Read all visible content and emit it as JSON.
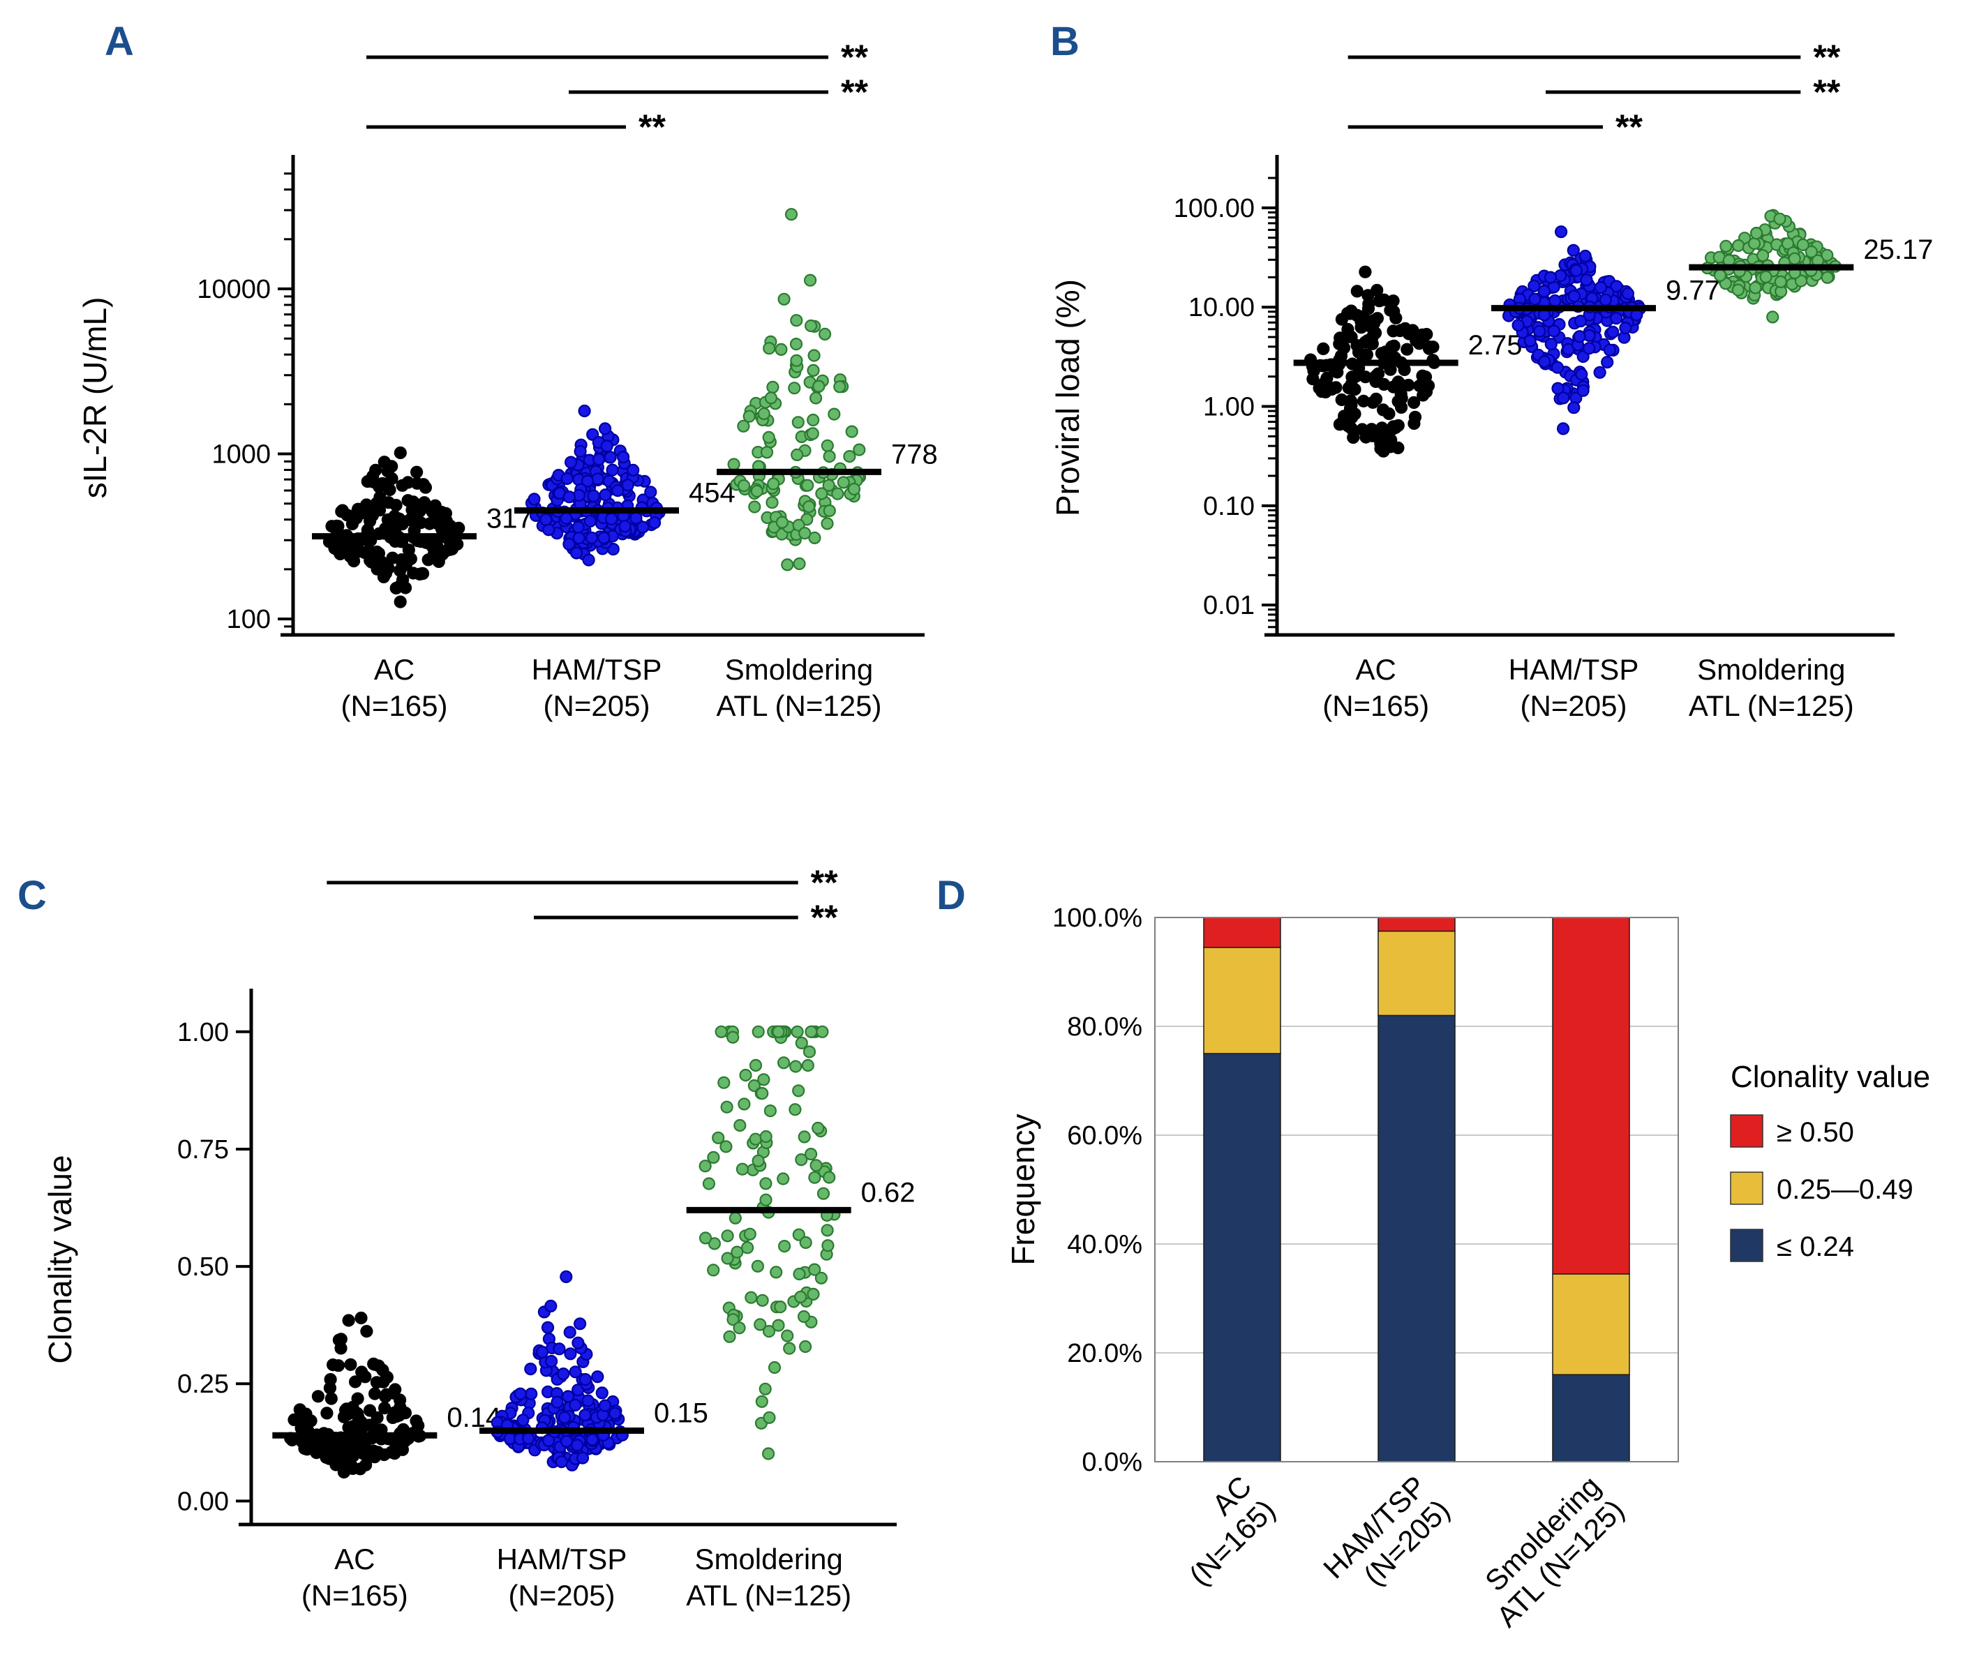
{
  "figure": {
    "background": "#ffffff",
    "panel_label_color": "#1b4e8c"
  },
  "chart_data": [
    {
      "panel": "A",
      "type": "scatter",
      "subtype": "beeswarm",
      "yscale": "log",
      "ylabel": "sIL-2R (U/mL)",
      "ylim": [
        80,
        60000
      ],
      "yticks": [
        {
          "v": 100,
          "label": "100"
        },
        {
          "v": 1000,
          "label": "1000"
        },
        {
          "v": 10000,
          "label": "10000"
        }
      ],
      "groups": [
        {
          "label_line1": "AC",
          "label_line2": "(N=165)",
          "n": 165,
          "median": 317,
          "median_label": "317",
          "fill": "#000000",
          "stroke": "#000000",
          "sd_down": 0.15,
          "sd_up": 0.21,
          "min": 110,
          "max": 2400,
          "dist": "lognormal"
        },
        {
          "label_line1": "HAM/TSP",
          "label_line2": "(N=205)",
          "n": 205,
          "median": 454,
          "median_label": "454",
          "fill": "#1717e6",
          "stroke": "#0000a0",
          "sd_down": 0.13,
          "sd_up": 0.2,
          "min": 150,
          "max": 3100,
          "dist": "lognormal"
        },
        {
          "label_line1": "Smoldering",
          "label_line2": "ATL (N=125)",
          "n": 125,
          "median": 778,
          "median_label": "778",
          "fill": "#66b96a",
          "stroke": "#2c7a31",
          "sd_down": 0.22,
          "sd_up": 0.5,
          "min": 185,
          "max": 40000,
          "dist": "lognormal"
        }
      ],
      "significance": [
        {
          "from": 0,
          "to": 2,
          "label": "**"
        },
        {
          "from": 1,
          "to": 2,
          "label": "**"
        },
        {
          "from": 0,
          "to": 1,
          "label": "**"
        }
      ]
    },
    {
      "panel": "B",
      "type": "scatter",
      "subtype": "beeswarm",
      "yscale": "log",
      "ylabel": "Proviral load (%)",
      "ylim": [
        0.005,
        300
      ],
      "yticks": [
        {
          "v": 100,
          "label": "100.00"
        },
        {
          "v": 10,
          "label": "10.00"
        },
        {
          "v": 1,
          "label": "1.00"
        },
        {
          "v": 0.1,
          "label": "0.10"
        },
        {
          "v": 0.01,
          "label": "0.01"
        }
      ],
      "groups": [
        {
          "label_line1": "AC",
          "label_line2": "(N=165)",
          "n": 165,
          "median": 2.75,
          "median_label": "2.75",
          "fill": "#000000",
          "stroke": "#000000",
          "sd_down": 0.5,
          "sd_up": 0.35,
          "min": 0.08,
          "max": 55,
          "dist": "lognormal"
        },
        {
          "label_line1": "HAM/TSP",
          "label_line2": "(N=205)",
          "n": 205,
          "median": 9.77,
          "median_label": "9.77",
          "fill": "#1717e6",
          "stroke": "#0000a0",
          "sd_down": 0.4,
          "sd_up": 0.22,
          "min": 0.17,
          "max": 75,
          "dist": "lognormal"
        },
        {
          "label_line1": "Smoldering",
          "label_line2": "ATL (N=125)",
          "n": 125,
          "median": 25.17,
          "median_label": "25.17",
          "fill": "#66b96a",
          "stroke": "#2c7a31",
          "sd_down": 0.18,
          "sd_up": 0.22,
          "min": 5.5,
          "max": 170,
          "dist": "lognormal"
        }
      ],
      "significance": [
        {
          "from": 0,
          "to": 2,
          "label": "**"
        },
        {
          "from": 1,
          "to": 2,
          "label": "**"
        },
        {
          "from": 0,
          "to": 1,
          "label": "**"
        }
      ]
    },
    {
      "panel": "C",
      "type": "scatter",
      "subtype": "beeswarm",
      "yscale": "linear",
      "ylabel": "Clonality value",
      "ylim": [
        -0.05,
        1.08
      ],
      "yticks": [
        {
          "v": 0,
          "label": "0.00"
        },
        {
          "v": 0.25,
          "label": "0.25"
        },
        {
          "v": 0.5,
          "label": "0.50"
        },
        {
          "v": 0.75,
          "label": "0.75"
        },
        {
          "v": 1,
          "label": "1.00"
        }
      ],
      "groups": [
        {
          "label_line1": "AC",
          "label_line2": "(N=165)",
          "n": 165,
          "median": 0.14,
          "median_label": "0.14",
          "fill": "#000000",
          "stroke": "#000000",
          "sd_down": 0.28,
          "sd_up": 0.5,
          "min": 0.06,
          "max": 0.87,
          "dist": "lognormal"
        },
        {
          "label_line1": "HAM/TSP",
          "label_line2": "(N=205)",
          "n": 205,
          "median": 0.15,
          "median_label": "0.15",
          "fill": "#1717e6",
          "stroke": "#0000a0",
          "sd_down": 0.25,
          "sd_up": 0.45,
          "min": 0.07,
          "max": 0.82,
          "dist": "lognormal"
        },
        {
          "label_line1": "Smoldering",
          "label_line2": "ATL (N=125)",
          "n": 125,
          "median": 0.62,
          "median_label": "0.62",
          "fill": "#66b96a",
          "stroke": "#2c7a31",
          "sd_down": 0.23,
          "sd_up": 0.33,
          "min": 0.08,
          "max": 1.0,
          "dist": "normal",
          "cap_cluster": true
        }
      ],
      "significance": [
        {
          "from": 0,
          "to": 2,
          "label": "**"
        },
        {
          "from": 1,
          "to": 2,
          "label": "**"
        }
      ]
    },
    {
      "panel": "D",
      "type": "stacked-bar",
      "ylabel": "Frequency",
      "ylim": [
        0,
        100
      ],
      "yticks": [
        {
          "v": 0,
          "label": "0.0%"
        },
        {
          "v": 20,
          "label": "20.0%"
        },
        {
          "v": 40,
          "label": "40.0%"
        },
        {
          "v": 60,
          "label": "60.0%"
        },
        {
          "v": 80,
          "label": "80.0%"
        },
        {
          "v": 100,
          "label": "100.0%"
        }
      ],
      "categories": [
        {
          "line1": "AC",
          "line2": "(N=165)"
        },
        {
          "line1": "HAM/TSP",
          "line2": "(N=205)"
        },
        {
          "line1": "Smoldering",
          "line2": "ATL (N=125)"
        }
      ],
      "series": [
        {
          "name": "≤ 0.24",
          "color": "#1f3864",
          "values": [
            75,
            82,
            16
          ]
        },
        {
          "name": "0.25—0.49",
          "color": "#e8bd3a",
          "values": [
            19.5,
            15.5,
            18.5
          ]
        },
        {
          "name": "≥ 0.50",
          "color": "#e02020",
          "values": [
            5.5,
            2.5,
            65.5
          ]
        }
      ],
      "legend": {
        "title": "Clonality value",
        "items": [
          {
            "label": "≥ 0.50",
            "color": "#e02020"
          },
          {
            "label": "0.25—0.49",
            "color": "#e8bd3a"
          },
          {
            "label": "≤ 0.24",
            "color": "#1f3864"
          }
        ]
      }
    }
  ]
}
